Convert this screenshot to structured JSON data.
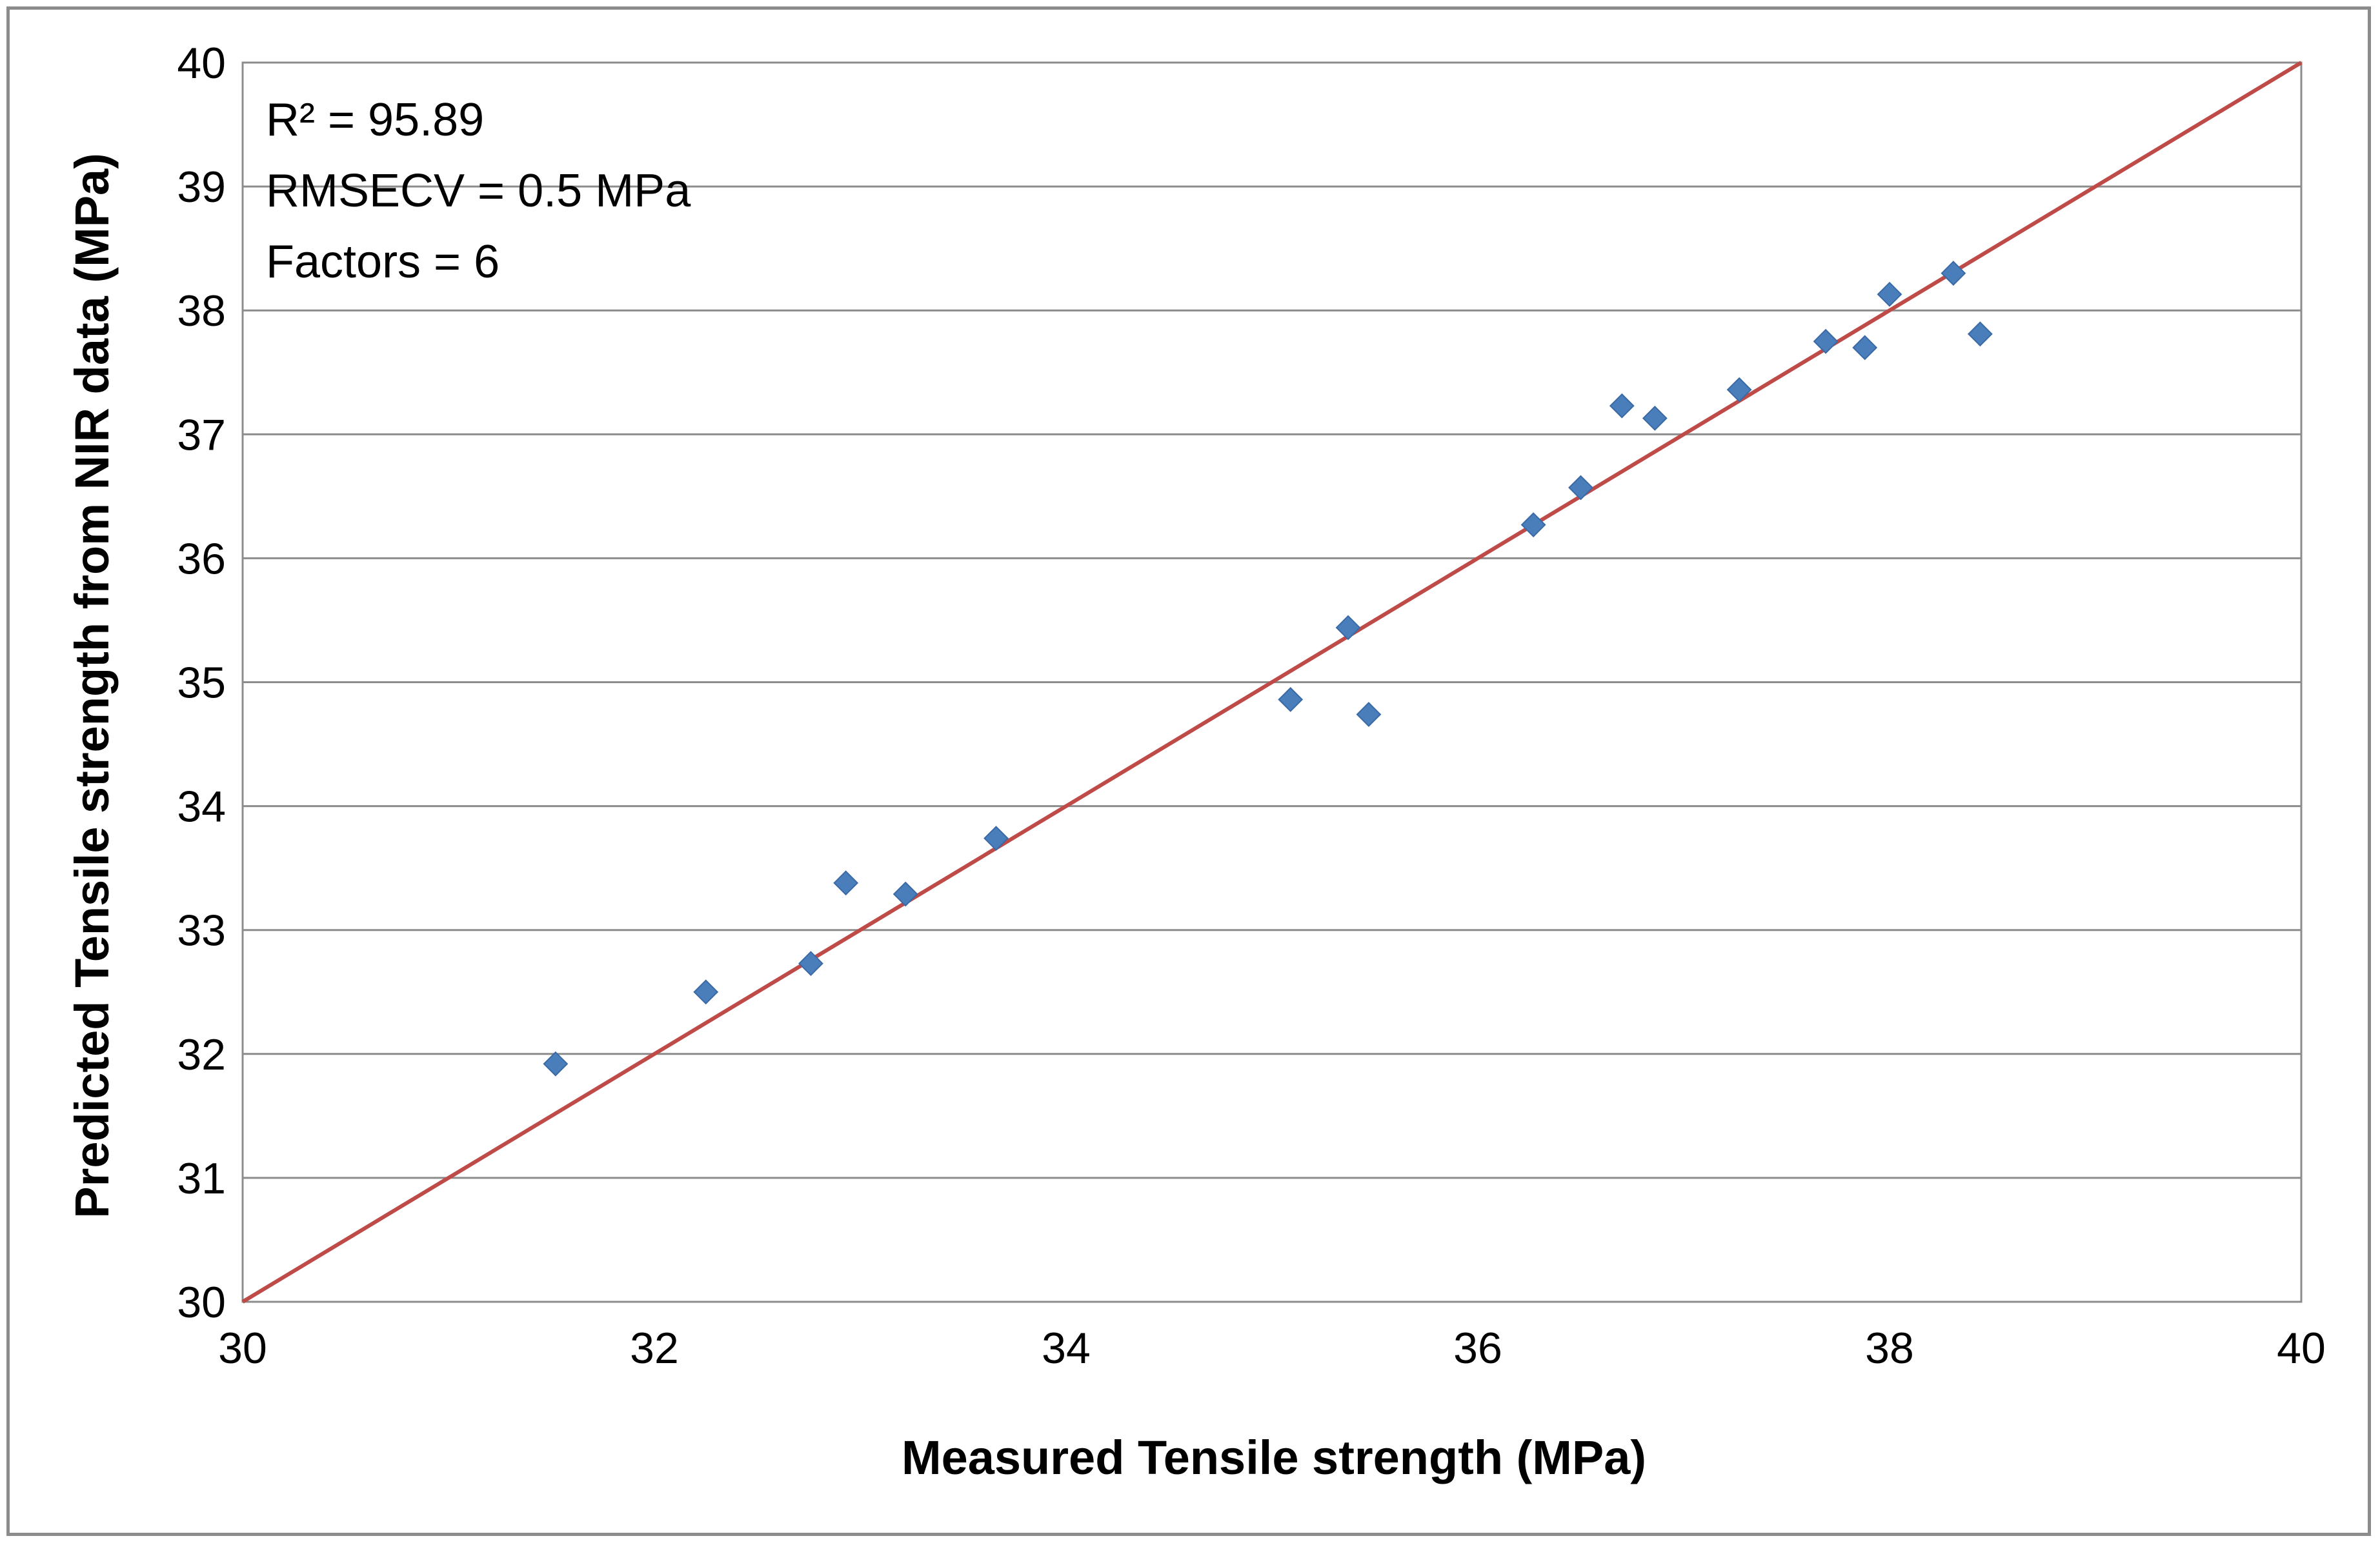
{
  "chart_data": {
    "type": "scatter",
    "title": "",
    "xlabel": "Measured Tensile strength (MPa)",
    "ylabel": "Predicted Tensile strength from NIR data (MPa)",
    "xlim": [
      30,
      40
    ],
    "ylim": [
      30,
      40
    ],
    "x_ticks": [
      "30",
      "32",
      "34",
      "36",
      "38",
      "40"
    ],
    "y_ticks": [
      "30",
      "31",
      "32",
      "33",
      "34",
      "35",
      "36",
      "37",
      "38",
      "39",
      "40"
    ],
    "grid": true,
    "legend": "none",
    "annotations": [
      "R² = 95.89",
      "RMSECV = 0.5 MPa",
      "Factors = 6"
    ],
    "series": [
      {
        "name": "Samples",
        "marker": "diamond",
        "color": "#4a7ebb",
        "x": [
          31.52,
          32.25,
          32.76,
          32.93,
          33.22,
          33.66,
          35.09,
          35.37,
          35.47,
          36.27,
          36.5,
          36.7,
          36.86,
          37.27,
          37.69,
          37.88,
          38.0,
          38.31,
          38.44
        ],
        "y": [
          31.92,
          32.5,
          32.73,
          33.38,
          33.29,
          33.74,
          34.86,
          35.44,
          34.74,
          36.27,
          36.57,
          37.23,
          37.13,
          37.36,
          37.75,
          37.7,
          38.13,
          38.3,
          37.81
        ]
      },
      {
        "name": "1:1 line",
        "type": "line",
        "color": "#be4b48",
        "x": [
          30,
          40
        ],
        "y": [
          30,
          40
        ]
      }
    ]
  }
}
